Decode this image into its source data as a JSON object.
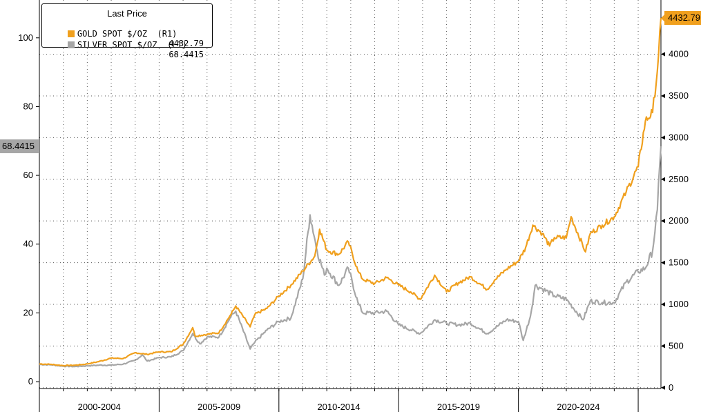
{
  "chart_data": {
    "type": "line",
    "title": "",
    "legend": {
      "title": "Last Price",
      "placement": "top-left",
      "entries": [
        {
          "label": "GOLD SPOT $/OZ  (R1)",
          "value": "4432.79",
          "color": "#f0a01e"
        },
        {
          "label": "SILVER SPOT $/OZ  (L1)",
          "value": "68.4415",
          "color": "#a6a6a6"
        }
      ]
    },
    "x_categories": [
      "2000-2004",
      "2005-2009",
      "2010-2014",
      "2015-2019",
      "2020-2024"
    ],
    "x_range": [
      2000,
      2025.95
    ],
    "left_axis": {
      "ticks": [
        0,
        20,
        40,
        60,
        80,
        100
      ],
      "range": [
        -2,
        111
      ]
    },
    "right_axis": {
      "ticks": [
        0,
        500,
        1000,
        1500,
        2000,
        2500,
        3000,
        3500,
        4000
      ],
      "range": [
        -10,
        4650
      ]
    },
    "grid": true,
    "series": [
      {
        "name": "GOLD SPOT $/OZ  (R1)",
        "axis": "right",
        "color": "#f0a01e",
        "x": [
          2000.0,
          2000.5,
          2001.0,
          2001.5,
          2002.0,
          2002.5,
          2003.0,
          2003.5,
          2004.0,
          2004.5,
          2005.0,
          2005.5,
          2006.0,
          2006.4,
          2006.5,
          2007.0,
          2007.5,
          2008.0,
          2008.2,
          2008.8,
          2009.0,
          2009.5,
          2010.0,
          2010.5,
          2011.0,
          2011.5,
          2011.7,
          2012.0,
          2012.5,
          2012.9,
          2013.3,
          2013.5,
          2014.0,
          2014.5,
          2015.0,
          2015.5,
          2015.9,
          2016.5,
          2017.0,
          2017.5,
          2018.0,
          2018.7,
          2019.0,
          2019.5,
          2020.0,
          2020.3,
          2020.6,
          2021.0,
          2021.3,
          2021.5,
          2022.0,
          2022.2,
          2022.8,
          2023.0,
          2023.5,
          2024.0,
          2024.5,
          2025.0,
          2025.3,
          2025.6,
          2025.8,
          2025.95
        ],
        "values": [
          285,
          280,
          265,
          270,
          285,
          315,
          355,
          350,
          420,
          400,
          430,
          430,
          520,
          720,
          620,
          640,
          660,
          880,
          980,
          730,
          880,
          950,
          1100,
          1230,
          1400,
          1580,
          1900,
          1650,
          1600,
          1750,
          1400,
          1300,
          1250,
          1320,
          1230,
          1150,
          1060,
          1350,
          1150,
          1260,
          1330,
          1180,
          1290,
          1420,
          1520,
          1680,
          1950,
          1850,
          1700,
          1800,
          1800,
          2050,
          1630,
          1850,
          1950,
          2050,
          2350,
          2650,
          3200,
          3300,
          3800,
          4432.79
        ]
      },
      {
        "name": "SILVER SPOT $/OZ  (L1)",
        "axis": "left",
        "color": "#a6a6a6",
        "x": [
          2000.0,
          2000.5,
          2001.0,
          2001.5,
          2002.0,
          2002.5,
          2003.0,
          2003.5,
          2004.0,
          2004.3,
          2004.5,
          2005.0,
          2005.5,
          2006.0,
          2006.4,
          2006.7,
          2007.0,
          2007.5,
          2008.0,
          2008.2,
          2008.8,
          2009.0,
          2009.5,
          2010.0,
          2010.5,
          2011.0,
          2011.3,
          2011.6,
          2011.9,
          2012.0,
          2012.5,
          2012.9,
          2013.3,
          2013.5,
          2014.0,
          2014.5,
          2015.0,
          2015.9,
          2016.5,
          2017.0,
          2017.5,
          2018.0,
          2018.7,
          2019.0,
          2019.5,
          2020.0,
          2020.2,
          2020.5,
          2020.7,
          2021.0,
          2021.5,
          2022.0,
          2022.7,
          2023.0,
          2023.5,
          2024.0,
          2024.5,
          2025.0,
          2025.3,
          2025.6,
          2025.8,
          2025.95
        ],
        "values": [
          5.0,
          4.9,
          4.5,
          4.4,
          4.6,
          4.8,
          4.8,
          5.1,
          6.2,
          7.8,
          6.0,
          7.0,
          7.2,
          9.0,
          14.0,
          11.0,
          13.0,
          13.0,
          19.0,
          20.5,
          9.5,
          11.5,
          15.0,
          17.5,
          18.5,
          30.0,
          48.5,
          38.0,
          31.0,
          33.0,
          28.0,
          33.0,
          23.0,
          20.0,
          20.0,
          20.5,
          16.5,
          14.0,
          18.0,
          17.0,
          16.5,
          17.0,
          14.0,
          15.5,
          18.0,
          17.5,
          12.0,
          19.0,
          28.0,
          27.0,
          25.0,
          24.0,
          18.0,
          23.5,
          23.0,
          23.0,
          29.0,
          32.0,
          33.0,
          38.0,
          50.0,
          68.4415
        ]
      }
    ],
    "last_value_tags": [
      {
        "series": "SILVER SPOT $/OZ  (L1)",
        "side": "left",
        "text": "68.4415"
      },
      {
        "series": "GOLD SPOT $/OZ  (R1)",
        "side": "right",
        "text": "4432.79"
      }
    ]
  }
}
